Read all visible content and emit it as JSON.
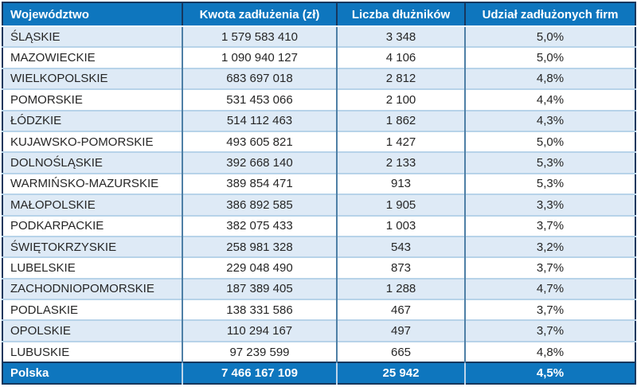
{
  "chart_data": {
    "type": "table",
    "columns": [
      {
        "key": "wojewodztwo",
        "label": "Województwo",
        "align": "left"
      },
      {
        "key": "kwota-zadluzenia",
        "label": "Kwota zadłużenia (zł)",
        "align": "center"
      },
      {
        "key": "liczba-dluznikow",
        "label": "Liczba dłużników",
        "align": "center"
      },
      {
        "key": "udzial-zadluzonych-firm",
        "label": "Udział zadłużonych firm",
        "align": "center"
      }
    ],
    "rows": [
      [
        "ŚLĄSKIE",
        "1 579 583 410",
        "3 348",
        "5,0%"
      ],
      [
        "MAZOWIECKIE",
        "1 090 940 127",
        "4 106",
        "5,0%"
      ],
      [
        "WIELKOPOLSKIE",
        "683 697 018",
        "2 812",
        "4,8%"
      ],
      [
        "POMORSKIE",
        "531 453 066",
        "2 100",
        "4,4%"
      ],
      [
        "ŁÓDZKIE",
        "514 112 463",
        "1 862",
        "4,3%"
      ],
      [
        "KUJAWSKO-POMORSKIE",
        "493 605 821",
        "1 427",
        "5,0%"
      ],
      [
        "DOLNOŚLĄSKIE",
        "392 668 140",
        "2 133",
        "5,3%"
      ],
      [
        "WARMIŃSKO-MAZURSKIE",
        "389 854 471",
        "913",
        "5,3%"
      ],
      [
        "MAŁOPOLSKIE",
        "386 892 585",
        "1 905",
        "3,3%"
      ],
      [
        "PODKARPACKIE",
        "382 075 433",
        "1 003",
        "3,7%"
      ],
      [
        "ŚWIĘTOKRZYSKIE",
        "258 981 328",
        "543",
        "3,2%"
      ],
      [
        "LUBELSKIE",
        "229 048 490",
        "873",
        "3,7%"
      ],
      [
        "ZACHODNIOPOMORSKIE",
        "187 389 405",
        "1 288",
        "4,7%"
      ],
      [
        "PODLASKIE",
        "138 331 586",
        "467",
        "3,7%"
      ],
      [
        "OPOLSKIE",
        "110 294 167",
        "497",
        "3,7%"
      ],
      [
        "LUBUSKIE",
        "97 239 599",
        "665",
        "4,8%"
      ]
    ],
    "total_row": [
      "Polska",
      "7 466 167 109",
      "25 942",
      "4,5%"
    ]
  },
  "colors": {
    "header_background": "#0E76BE",
    "header_text": "#FFFFFF",
    "row_alt_background": "#DEEAF6",
    "row_background": "#FFFFFF",
    "body_text": "#262626",
    "outer_border": "#17375D",
    "column_separator": "#4E7FA6",
    "row_separator": "#B7D3E9",
    "total_row_background": "#0E76BE",
    "total_row_text": "#FFFFFF"
  }
}
